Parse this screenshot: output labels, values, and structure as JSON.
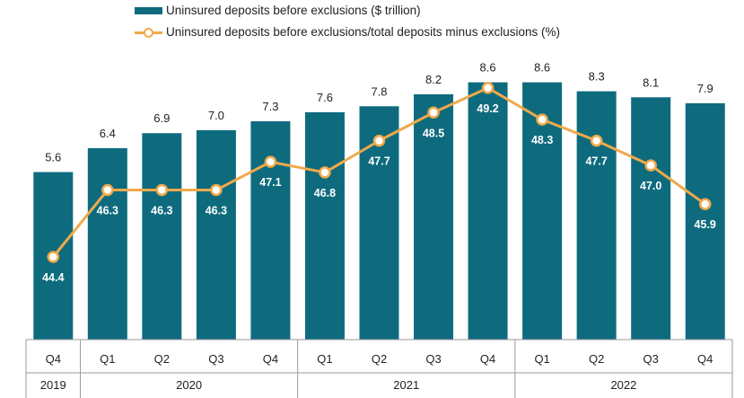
{
  "chart_data": {
    "type": "bar",
    "quarters": [
      "Q4",
      "Q1",
      "Q2",
      "Q3",
      "Q4",
      "Q1",
      "Q2",
      "Q3",
      "Q4",
      "Q1",
      "Q2",
      "Q3",
      "Q4"
    ],
    "year_groups": [
      {
        "label": "2019",
        "start": 0,
        "end": 0
      },
      {
        "label": "2020",
        "start": 1,
        "end": 4
      },
      {
        "label": "2021",
        "start": 5,
        "end": 8
      },
      {
        "label": "2022",
        "start": 9,
        "end": 12
      }
    ],
    "series": [
      {
        "name": "Uninsured deposits before exclusions ($ trillion)",
        "type": "bar",
        "color": "#0e6b7e",
        "values": [
          5.6,
          6.4,
          6.9,
          7.0,
          7.3,
          7.6,
          7.8,
          8.2,
          8.6,
          8.6,
          8.3,
          8.1,
          7.9
        ],
        "labels": [
          "5.6",
          "6.4",
          "6.9",
          "7.0",
          "7.3",
          "7.6",
          "7.8",
          "8.2",
          "8.6",
          "8.6",
          "8.3",
          "8.1",
          "7.9"
        ]
      },
      {
        "name": "Uninsured deposits before exclusions/total deposits minus exclusions (%)",
        "type": "line",
        "color": "#f0a94a",
        "values": [
          44.4,
          46.3,
          46.3,
          46.3,
          47.1,
          46.8,
          47.7,
          48.5,
          49.2,
          48.3,
          47.7,
          47.0,
          45.9
        ],
        "labels": [
          "44.4",
          "46.3",
          "46.3",
          "46.3",
          "47.1",
          "46.8",
          "47.7",
          "48.5",
          "49.2",
          "48.3",
          "47.7",
          "47.0",
          "45.9"
        ]
      }
    ],
    "bar_axis_range": [
      0,
      9
    ],
    "line_axis_range": [
      40,
      50
    ],
    "grid": false,
    "legend_position": "top-left"
  }
}
